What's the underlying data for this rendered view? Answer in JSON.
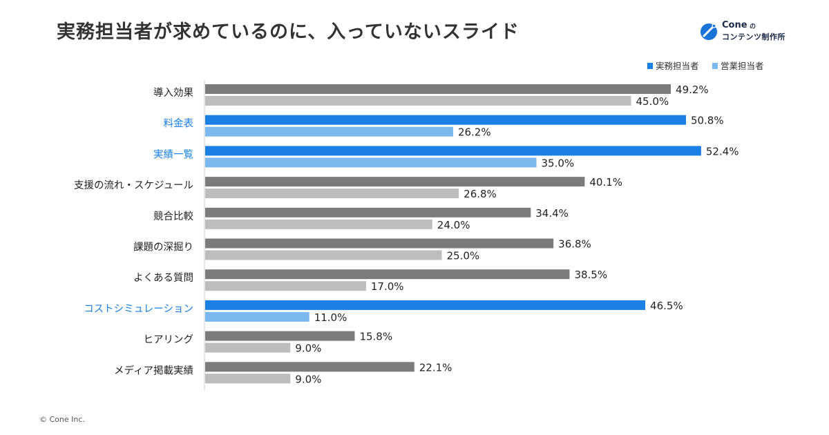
{
  "header": {
    "title": "実務担当者が求めているのに、入っていないスライド"
  },
  "brand": {
    "name": "Cone",
    "connector": "の",
    "subtitle": "コンテンツ制作所",
    "logo_icon": "cone-logo-icon",
    "logo_color": "#1a73d9"
  },
  "footer": {
    "copyright": "© Cone Inc."
  },
  "chart_data": {
    "type": "bar",
    "orientation": "horizontal",
    "title": "",
    "xlabel": "",
    "ylabel": "",
    "xlim": [
      0,
      60
    ],
    "value_suffix": "%",
    "grid": false,
    "legend_position": "top-right",
    "categories": [
      "導入効果",
      "料金表",
      "実績一覧",
      "支援の流れ・スケジュール",
      "競合比較",
      "課題の深掘り",
      "よくある質問",
      "コストシミュレーション",
      "ヒアリング",
      "メディア掲載実績"
    ],
    "highlighted": [
      false,
      true,
      true,
      false,
      false,
      false,
      false,
      true,
      false,
      false
    ],
    "series": [
      {
        "name": "実務担当者",
        "values": [
          49.2,
          50.8,
          52.4,
          40.1,
          34.4,
          36.8,
          38.5,
          46.5,
          15.8,
          22.1
        ],
        "color": "#7b7b7b",
        "highlight_color": "#1a80e5",
        "legend_color": "#1a80e5"
      },
      {
        "name": "営業担当者",
        "values": [
          45.0,
          26.2,
          35.0,
          26.8,
          24.0,
          25.0,
          17.0,
          11.0,
          9.0,
          9.0
        ],
        "color": "#bdbdbd",
        "highlight_color": "#7ab8ee",
        "legend_color": "#7ab8ee"
      }
    ],
    "colors": {
      "axis": "#cccccc",
      "label_default": "#222222",
      "label_highlight": "#1a80e5"
    }
  }
}
